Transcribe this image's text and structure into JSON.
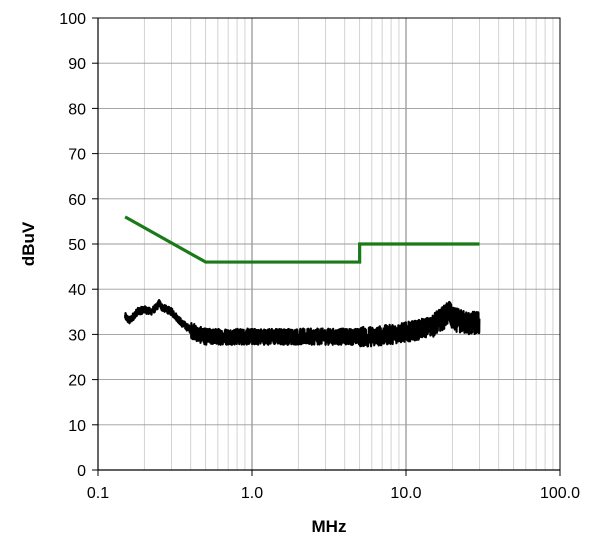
{
  "chart_data": {
    "type": "line",
    "title": "",
    "xlabel": "MHz",
    "ylabel": "dBuV",
    "x_scale": "log",
    "xlim": [
      0.1,
      100.0
    ],
    "ylim": [
      0,
      100
    ],
    "x_ticks": [
      {
        "value": 0.1,
        "label": "0.1"
      },
      {
        "value": 1.0,
        "label": "1.0"
      },
      {
        "value": 10.0,
        "label": "10.0"
      },
      {
        "value": 100.0,
        "label": "100.0"
      }
    ],
    "y_ticks": [
      {
        "value": 0,
        "label": "0"
      },
      {
        "value": 10,
        "label": "10"
      },
      {
        "value": 20,
        "label": "20"
      },
      {
        "value": 30,
        "label": "30"
      },
      {
        "value": 40,
        "label": "40"
      },
      {
        "value": 50,
        "label": "50"
      },
      {
        "value": 60,
        "label": "60"
      },
      {
        "value": 70,
        "label": "70"
      },
      {
        "value": 80,
        "label": "80"
      },
      {
        "value": 90,
        "label": "90"
      },
      {
        "value": 100,
        "label": "100"
      }
    ],
    "grid": true,
    "legend": "none",
    "series": [
      {
        "color": "#1a7a1a",
        "x": [
          0.15,
          0.5,
          0.5,
          5.0,
          5.0,
          30.0
        ],
        "values": [
          56,
          46,
          46,
          46,
          50,
          50
        ]
      },
      {
        "color": "#000000",
        "noisy": true,
        "x": [
          0.15,
          0.16,
          0.18,
          0.2,
          0.22,
          0.24,
          0.25,
          0.26,
          0.28,
          0.3,
          0.32,
          0.35,
          0.4,
          0.45,
          0.5,
          0.6,
          0.7,
          0.8,
          1.0,
          1.5,
          2.0,
          3.0,
          4.0,
          5.0,
          6.0,
          8.0,
          10.0,
          12.0,
          15.0,
          18.0,
          19.0,
          20.0,
          22.0,
          25.0,
          28.0,
          30.0
        ],
        "values": [
          34,
          33,
          35,
          35.5,
          35,
          36,
          37,
          36,
          35.5,
          35,
          34,
          32.5,
          31,
          30,
          29.5,
          29.5,
          29.5,
          29.5,
          29.5,
          29.5,
          29.5,
          29.5,
          29.5,
          29.5,
          29.5,
          30,
          30.5,
          31,
          32,
          34,
          35,
          33.5,
          33,
          32.5,
          32.5,
          32.5
        ]
      }
    ]
  }
}
